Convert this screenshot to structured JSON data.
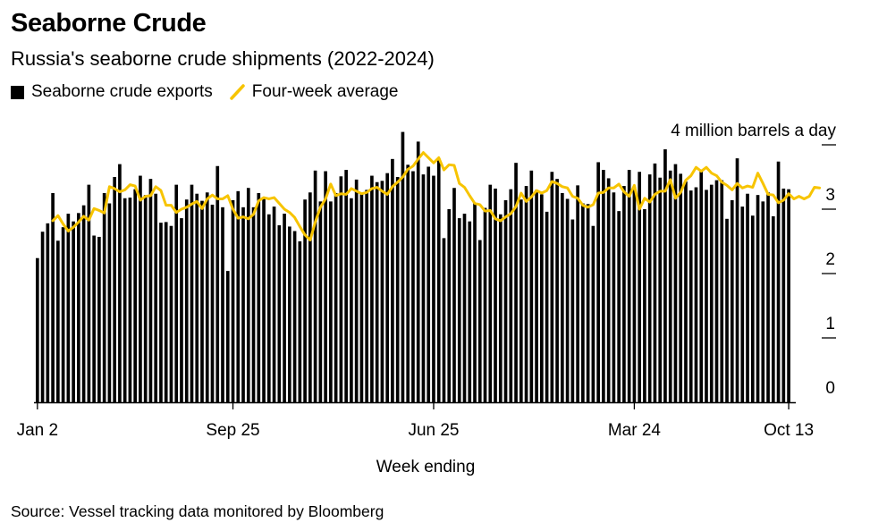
{
  "header": {
    "title": "Seaborne Crude",
    "subtitle": "Russia's seaborne crude shipments (2022-2024)"
  },
  "legend": {
    "bars_label": "Seaborne crude exports",
    "line_label": "Four-week average"
  },
  "footer": {
    "source": "Source: Vessel tracking data monitored by Bloomberg"
  },
  "colors": {
    "bars": "#000000",
    "average_line": "#F7C400",
    "axis": "#000000",
    "background": "#ffffff"
  },
  "chart_data": {
    "type": "bar",
    "title": "Seaborne Crude",
    "subtitle": "Russia's seaborne crude shipments (2022-2024)",
    "unit_label": "4 million barrels a day",
    "xlabel": "Week ending",
    "ylabel": "",
    "ylim": [
      0,
      4
    ],
    "y_ticks": [
      0,
      1,
      2,
      3,
      4
    ],
    "y_tick_labels": [
      "0",
      "1",
      "2",
      "3",
      "4 million barrels a day"
    ],
    "y_axis_side": "right",
    "grid": false,
    "legend_position": "top-left",
    "x_tick_labels": [
      "Jan 2",
      "Sep 25",
      "Jun 25",
      "Mar 24",
      "Oct 13"
    ],
    "x_tick_week_index": [
      0,
      38,
      77,
      116,
      146
    ],
    "series": [
      {
        "name": "Seaborne crude exports",
        "type": "bar",
        "values": [
          2.24,
          2.65,
          2.78,
          3.25,
          2.51,
          2.72,
          2.93,
          2.81,
          2.94,
          3.06,
          3.38,
          2.59,
          2.57,
          3.25,
          3.09,
          3.5,
          3.7,
          3.17,
          3.18,
          3.31,
          3.52,
          3.22,
          3.47,
          3.24,
          2.79,
          2.8,
          2.74,
          3.38,
          2.86,
          3.15,
          3.38,
          3.24,
          3.13,
          3.26,
          3.07,
          3.67,
          3.03,
          2.04,
          3.14,
          3.28,
          3.03,
          3.33,
          3.03,
          3.25,
          3.18,
          2.92,
          3.04,
          2.75,
          2.93,
          2.73,
          2.66,
          2.5,
          3.15,
          3.26,
          3.6,
          3.12,
          3.59,
          3.12,
          3.25,
          3.51,
          3.61,
          3.17,
          3.46,
          3.23,
          3.3,
          3.52,
          3.42,
          3.44,
          3.56,
          3.78,
          3.5,
          4.2,
          3.69,
          3.59,
          4.05,
          3.54,
          3.66,
          3.52,
          3.79,
          2.55,
          3.0,
          3.33,
          2.86,
          2.93,
          2.81,
          3.1,
          2.52,
          3.02,
          3.38,
          3.32,
          2.92,
          3.14,
          3.31,
          3.72,
          3.15,
          3.36,
          3.6,
          3.3,
          3.23,
          2.96,
          3.58,
          3.47,
          3.25,
          3.16,
          2.84,
          3.37,
          3.09,
          3.08,
          2.74,
          3.73,
          3.61,
          3.48,
          3.26,
          2.97,
          3.36,
          3.61,
          3.35,
          3.58,
          3.0,
          3.54,
          3.71,
          3.49,
          3.93,
          3.6,
          3.7,
          3.55,
          3.43,
          3.29,
          3.34,
          3.6,
          3.3,
          3.38,
          3.45,
          3.45,
          2.85,
          3.14,
          3.79,
          3.04,
          3.24,
          2.9,
          3.22,
          3.12,
          3.26,
          2.89,
          3.74,
          3.32,
          3.31
        ]
      },
      {
        "name": "Four-week average",
        "type": "line",
        "start_week_index": 3,
        "values": [
          2.82,
          2.9,
          2.77,
          2.66,
          2.72,
          2.8,
          2.89,
          2.83,
          3.01,
          2.98,
          2.94,
          3.35,
          3.32,
          3.27,
          3.3,
          3.38,
          3.36,
          3.14,
          3.2,
          3.21,
          3.35,
          3.29,
          3.06,
          3.06,
          2.95,
          3.0,
          3.03,
          3.08,
          3.12,
          3.01,
          3.16,
          3.22,
          3.16,
          3.16,
          3.21,
          3.0,
          2.86,
          2.88,
          2.85,
          2.92,
          3.13,
          3.18,
          3.16,
          3.18,
          3.09,
          3.0,
          2.95,
          2.87,
          2.73,
          2.6,
          2.52,
          2.8,
          3.03,
          3.16,
          3.39,
          3.21,
          3.24,
          3.23,
          3.32,
          3.28,
          3.24,
          3.26,
          3.32,
          3.34,
          3.28,
          3.23,
          3.35,
          3.42,
          3.5,
          3.62,
          3.67,
          3.78,
          3.88,
          3.8,
          3.72,
          3.8,
          3.61,
          3.69,
          3.68,
          3.4,
          3.34,
          3.21,
          3.09,
          3.07,
          2.97,
          2.98,
          2.85,
          2.82,
          2.88,
          2.93,
          3.04,
          3.25,
          3.12,
          3.19,
          3.29,
          3.25,
          3.29,
          3.43,
          3.4,
          3.35,
          3.33,
          3.2,
          3.17,
          3.06,
          3.03,
          3.07,
          3.25,
          3.26,
          3.33,
          3.33,
          3.39,
          3.27,
          3.2,
          3.37,
          3.0,
          3.17,
          3.11,
          3.23,
          3.28,
          3.28,
          3.46,
          3.17,
          3.26,
          3.45,
          3.52,
          3.65,
          3.59,
          3.65,
          3.56,
          3.52,
          3.42,
          3.37,
          3.3,
          3.4,
          3.33,
          3.36,
          3.34,
          3.56,
          3.4,
          3.23,
          3.22,
          3.1,
          3.14,
          3.24,
          3.16,
          3.2,
          3.16,
          3.2,
          3.34,
          3.33
        ]
      }
    ]
  }
}
